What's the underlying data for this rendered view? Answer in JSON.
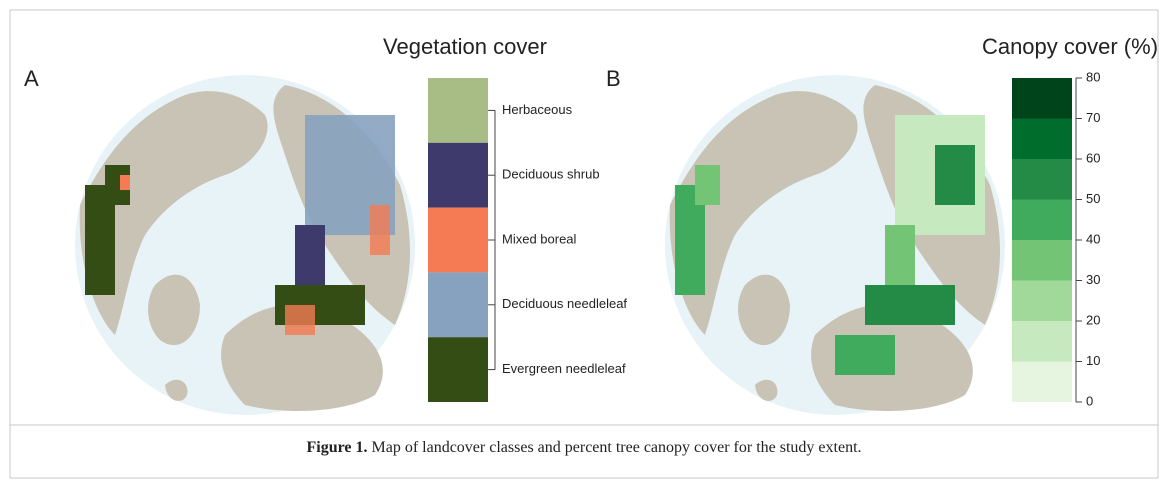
{
  "panels": [
    {
      "label": "A",
      "title": "Vegetation cover",
      "legend": [
        {
          "name": "Herbaceous",
          "color": "#a8bc85"
        },
        {
          "name": "Deciduous shrub",
          "color": "#3e3a6b"
        },
        {
          "name": "Mixed boreal",
          "color": "#f47b54"
        },
        {
          "name": "Deciduous needleleaf",
          "color": "#87a2bf"
        },
        {
          "name": "Evergreen needleleaf",
          "color": "#344d15"
        }
      ]
    },
    {
      "label": "B",
      "title": "Canopy cover (%)",
      "colorbar": {
        "lim": [
          0,
          80
        ],
        "ticks": [
          0,
          10,
          20,
          30,
          40,
          50,
          60,
          70,
          80
        ],
        "colors": [
          "#e5f5e0",
          "#c7e9c0",
          "#a1d99b",
          "#74c476",
          "#41ab5d",
          "#238b45",
          "#006d2c",
          "#00441b"
        ]
      }
    }
  ],
  "caption": {
    "label": "Figure 1.",
    "text": "Map of landcover classes and percent tree canopy cover for the study extent."
  }
}
